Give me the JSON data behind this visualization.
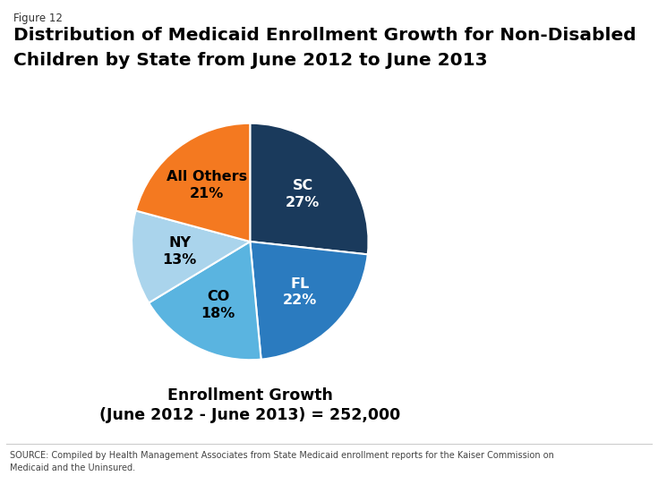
{
  "figure_label": "Figure 12",
  "title_line1": "Distribution of Medicaid Enrollment Growth for Non-Disabled",
  "title_line2": "Children by State from June 2012 to June 2013",
  "slices": [
    27,
    22,
    18,
    13,
    21
  ],
  "labels": [
    "SC",
    "FL",
    "CO",
    "NY",
    "All Others"
  ],
  "pct_labels": [
    "27%",
    "22%",
    "18%",
    "13%",
    "21%"
  ],
  "colors": [
    "#1a3a5c",
    "#2b7bbf",
    "#5ab4e0",
    "#aad4ec",
    "#f47920"
  ],
  "label_colors": [
    "#ffffff",
    "#ffffff",
    "#000000",
    "#000000",
    "#000000"
  ],
  "startangle": 90,
  "center_label_line1": "Enrollment Growth",
  "center_label_line2": "(June 2012 - June 2013) = 252,000",
  "source_text": "SOURCE: Compiled by Health Management Associates from State Medicaid enrollment reports for the Kaiser Commission on\nMedicaid and the Uninsured.",
  "background_color": "#ffffff"
}
